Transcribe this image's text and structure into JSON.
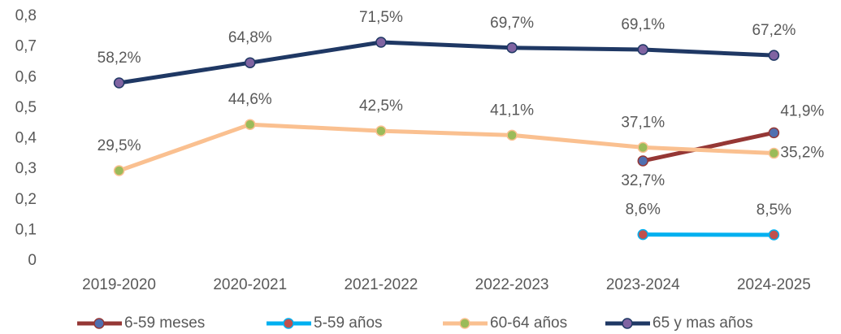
{
  "chart_data": {
    "type": "line",
    "categories": [
      "2019-2020",
      "2020-2021",
      "2021-2022",
      "2022-2023",
      "2023-2024",
      "2024-2025"
    ],
    "series": [
      {
        "name": "6-59 meses",
        "color": "#953735",
        "marker_color": "#4f6fb0",
        "values": [
          null,
          null,
          null,
          null,
          0.327,
          0.419
        ],
        "value_labels": [
          null,
          null,
          null,
          null,
          "32,7%",
          "41,9%"
        ]
      },
      {
        "name": "5-59 años",
        "color": "#00b0f0",
        "marker_color": "#c0504d",
        "values": [
          null,
          null,
          null,
          null,
          0.086,
          0.085
        ],
        "value_labels": [
          null,
          null,
          null,
          null,
          "8,6%",
          "8,5%"
        ]
      },
      {
        "name": "60-64 años",
        "color": "#fac090",
        "marker_color": "#9bbb59",
        "values": [
          0.295,
          0.446,
          0.425,
          0.411,
          0.371,
          0.352
        ],
        "value_labels": [
          "29,5%",
          "44,6%",
          "42,5%",
          "41,1%",
          "37,1%",
          "35,2%"
        ]
      },
      {
        "name": "65 y mas años",
        "color": "#1f3864",
        "marker_color": "#8064a2",
        "values": [
          0.582,
          0.648,
          0.715,
          0.697,
          0.691,
          0.672
        ],
        "value_labels": [
          "58,2%",
          "64,8%",
          "71,5%",
          "69,7%",
          "69,1%",
          "67,2%"
        ]
      }
    ],
    "ylim": [
      0,
      0.8
    ],
    "yticks": [
      0,
      {
        "value": 0.1,
        "label": "0,1"
      },
      {
        "value": 0.2,
        "label": "0,2"
      },
      {
        "value": 0.3,
        "label": "0,3"
      },
      {
        "value": 0.4,
        "label": "0,4"
      },
      {
        "value": 0.5,
        "label": "0,5"
      },
      {
        "value": 0.6,
        "label": "0,6"
      },
      {
        "value": 0.7,
        "label": "0,7"
      },
      {
        "value": 0.8,
        "label": "0,8"
      }
    ],
    "grid": false,
    "legend": "bottom"
  }
}
